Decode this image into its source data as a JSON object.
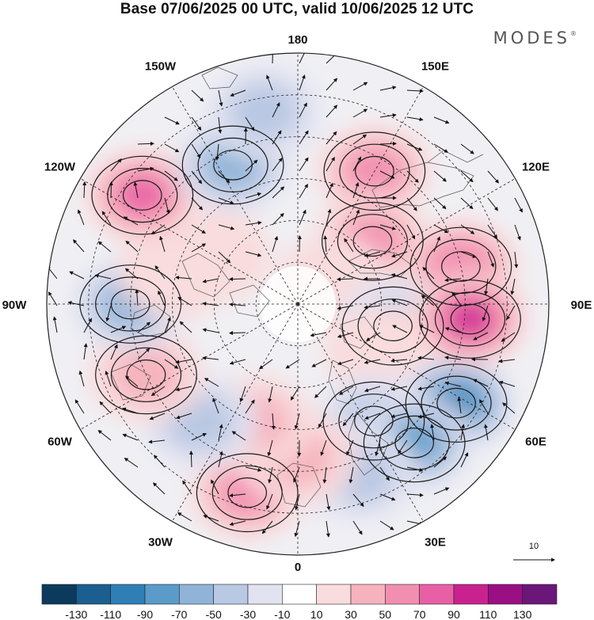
{
  "title": "Base 07/06/2025 00 UTC, valid 10/06/2025 12 UTC",
  "logo": "MODES",
  "logo_mark": "®",
  "longitude_labels": [
    "180",
    "150E",
    "120E",
    "90E",
    "60E",
    "30E",
    "0",
    "30W",
    "60W",
    "90W",
    "120W",
    "150W"
  ],
  "vector_reference": {
    "label": "10",
    "value": 10
  },
  "colorbar": {
    "colors": [
      "#0b3a5c",
      "#1a5f8f",
      "#2f7fb5",
      "#5a9bc9",
      "#8fb4d8",
      "#b9c8e3",
      "#e2e3f1",
      "#ffffff",
      "#f9dcdd",
      "#f6b3bd",
      "#f28fb1",
      "#e95fa6",
      "#c9228f",
      "#9a0f84",
      "#6b1679"
    ],
    "tick_labels": [
      "-130",
      "-110",
      "-90",
      "-70",
      "-50",
      "-30",
      "-10",
      "10",
      "30",
      "50",
      "70",
      "90",
      "110",
      "130"
    ]
  },
  "anomaly_centers": [
    {
      "lon_deg": 150,
      "colat_deg": 55,
      "value": 55
    },
    {
      "lon_deg": 130,
      "colat_deg": 35,
      "value": 60
    },
    {
      "lon_deg": 120,
      "colat_deg": 15,
      "value": 30
    },
    {
      "lon_deg": 103,
      "colat_deg": 60,
      "value": 70
    },
    {
      "lon_deg": 77,
      "colat_deg": 35,
      "value": -45
    },
    {
      "lon_deg": 60,
      "colat_deg": 35,
      "value": 25
    },
    {
      "lon_deg": 58,
      "colat_deg": 67,
      "value": -90
    },
    {
      "lon_deg": 33,
      "colat_deg": 50,
      "value": -45
    },
    {
      "lon_deg": 13,
      "colat_deg": 60,
      "value": -35
    },
    {
      "lon_deg": 85,
      "colat_deg": 62,
      "value": 105
    },
    {
      "lon_deg": 40,
      "colat_deg": 65,
      "value": -80
    },
    {
      "lon_deg": 20,
      "colat_deg": 65,
      "value": -35
    },
    {
      "lon_deg": -15,
      "colat_deg": 70,
      "value": 65
    },
    {
      "lon_deg": 0,
      "colat_deg": 55,
      "value": 35
    },
    {
      "lon_deg": -20,
      "colat_deg": 45,
      "value": 40
    },
    {
      "lon_deg": -40,
      "colat_deg": 55,
      "value": -35
    },
    {
      "lon_deg": -65,
      "colat_deg": 60,
      "value": 45
    },
    {
      "lon_deg": -90,
      "colat_deg": 60,
      "value": -55
    },
    {
      "lon_deg": -105,
      "colat_deg": 45,
      "value": 30
    },
    {
      "lon_deg": -125,
      "colat_deg": 68,
      "value": 75
    },
    {
      "lon_deg": -155,
      "colat_deg": 55,
      "value": -60
    },
    {
      "lon_deg": -170,
      "colat_deg": 70,
      "value": -30
    },
    {
      "lon_deg": -120,
      "colat_deg": 35,
      "value": 20
    }
  ]
}
